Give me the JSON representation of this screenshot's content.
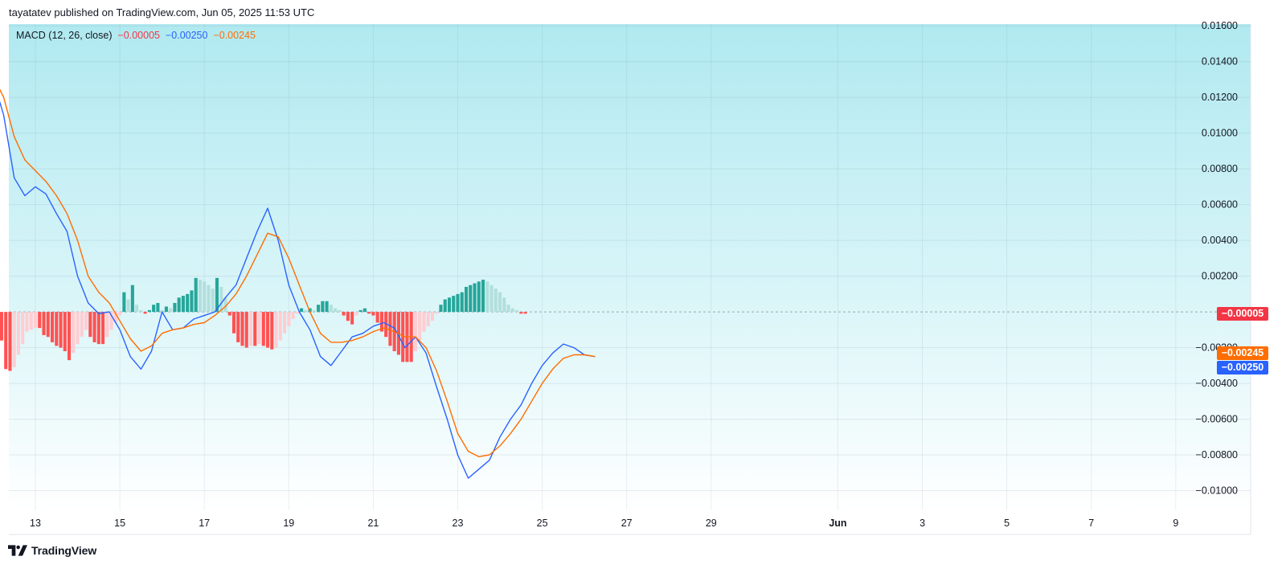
{
  "header": {
    "published": "tayatatev published on TradingView.com, Jun 05, 2025 11:53 UTC"
  },
  "footer": {
    "logo_icon": "tradingview-logo-icon",
    "brand": "TradingView"
  },
  "legend": {
    "name": "MACD (12, 26, close)",
    "histogram_value": "−0.00005",
    "macd_value": "−0.00250",
    "signal_value": "−0.00245"
  },
  "axis_tags": {
    "histogram": "−0.00005",
    "signal": "−0.00245",
    "macd": "−0.00250"
  },
  "colors": {
    "background_top": "#b0e9f0",
    "background_bottom": "#ffffff",
    "macd_line": "#2962ff",
    "signal_line": "#ff6d00",
    "hist_pos_growing": "#26a69a",
    "hist_pos_falling": "#b2dfdb",
    "hist_neg_falling": "#ff5252",
    "hist_neg_rising": "#ffcdd2",
    "zero_line": "#9aa7b8"
  },
  "chart_data": {
    "type": "line",
    "title": "MACD (12, 26, close)",
    "x_start": "2025-05-12",
    "x_step_days": 0.25,
    "ylim": [
      -0.0111,
      0.0161
    ],
    "y_ticks": [
      {
        "value": 0.016,
        "label": "0.01600"
      },
      {
        "value": 0.014,
        "label": "0.01400"
      },
      {
        "value": 0.012,
        "label": "0.01200"
      },
      {
        "value": 0.01,
        "label": "0.01000"
      },
      {
        "value": 0.008,
        "label": "0.00800"
      },
      {
        "value": 0.006,
        "label": "0.00600"
      },
      {
        "value": 0.004,
        "label": "0.00400"
      },
      {
        "value": 0.002,
        "label": "0.00200"
      },
      {
        "value": -0.002,
        "label": "−0.00200"
      },
      {
        "value": -0.004,
        "label": "−0.00400"
      },
      {
        "value": -0.006,
        "label": "−0.00600"
      },
      {
        "value": -0.008,
        "label": "−0.00800"
      },
      {
        "value": -0.01,
        "label": "−0.01000"
      }
    ],
    "x_ticks": [
      {
        "date": "2025-05-13",
        "label": "13",
        "bold": false
      },
      {
        "date": "2025-05-15",
        "label": "15",
        "bold": false
      },
      {
        "date": "2025-05-17",
        "label": "17",
        "bold": false
      },
      {
        "date": "2025-05-19",
        "label": "19",
        "bold": false
      },
      {
        "date": "2025-05-21",
        "label": "21",
        "bold": false
      },
      {
        "date": "2025-05-23",
        "label": "23",
        "bold": false
      },
      {
        "date": "2025-05-25",
        "label": "25",
        "bold": false
      },
      {
        "date": "2025-05-27",
        "label": "27",
        "bold": false
      },
      {
        "date": "2025-05-29",
        "label": "29",
        "bold": false
      },
      {
        "date": "2025-06-01",
        "label": "Jun",
        "bold": true
      },
      {
        "date": "2025-06-03",
        "label": "3",
        "bold": false
      },
      {
        "date": "2025-06-05",
        "label": "5",
        "bold": false
      },
      {
        "date": "2025-06-07",
        "label": "7",
        "bold": false
      },
      {
        "date": "2025-06-09",
        "label": "9",
        "bold": false
      }
    ],
    "grid": true,
    "series": [
      {
        "name": "MACD",
        "color": "#2962ff",
        "values": [
          0.013,
          0.011,
          0.0075,
          0.0065,
          0.007,
          0.0066,
          0.0055,
          0.0045,
          0.002,
          0.0005,
          -0.0001,
          0.0,
          -0.001,
          -0.0025,
          -0.0032,
          -0.0022,
          0.0,
          -0.001,
          -0.0009,
          -0.0004,
          -0.0002,
          0.0,
          0.0008,
          0.0015,
          0.003,
          0.0045,
          0.0058,
          0.004,
          0.0015,
          0.0,
          -0.001,
          -0.0025,
          -0.003,
          -0.0022,
          -0.0014,
          -0.0012,
          -0.0008,
          -0.0006,
          -0.0009,
          -0.002,
          -0.0014,
          -0.0023,
          -0.0042,
          -0.006,
          -0.008,
          -0.0093,
          -0.0088,
          -0.0083,
          -0.007,
          -0.006,
          -0.0052,
          -0.004,
          -0.003,
          -0.0023,
          -0.0018,
          -0.002,
          -0.0024,
          -0.0025
        ]
      },
      {
        "name": "Signal",
        "color": "#ff6d00",
        "values": [
          0.0132,
          0.012,
          0.0098,
          0.0085,
          0.0079,
          0.0073,
          0.0065,
          0.0055,
          0.004,
          0.002,
          0.0011,
          0.0005,
          -0.0005,
          -0.0015,
          -0.0022,
          -0.0019,
          -0.0012,
          -0.001,
          -0.0009,
          -0.0007,
          -0.0006,
          -0.0002,
          0.0003,
          0.001,
          0.002,
          0.0032,
          0.0044,
          0.0042,
          0.003,
          0.0015,
          0.0,
          -0.0012,
          -0.0017,
          -0.0017,
          -0.0016,
          -0.0014,
          -0.0011,
          -0.0009,
          -0.0011,
          -0.0014,
          -0.0014,
          -0.002,
          -0.0033,
          -0.005,
          -0.0068,
          -0.0078,
          -0.0081,
          -0.008,
          -0.0075,
          -0.0068,
          -0.006,
          -0.005,
          -0.004,
          -0.0032,
          -0.0026,
          -0.0024,
          -0.0024,
          -0.0025
        ]
      },
      {
        "name": "Histogram",
        "type": "bar",
        "values": [
          -0.0009,
          -0.0012,
          -0.0016,
          -0.0032,
          -0.0033,
          -0.0031,
          -0.0024,
          -0.0018,
          -0.0011,
          -0.001,
          -0.0009,
          -0.0009,
          -0.0013,
          -0.0014,
          -0.0017,
          -0.0019,
          -0.002,
          -0.0022,
          -0.0027,
          -0.0023,
          -0.0018,
          -0.0014,
          -0.001,
          -0.0014,
          -0.0017,
          -0.0018,
          -0.0018,
          -0.0014,
          -0.001,
          -0.0006,
          -0.0002,
          0.0011,
          0.0007,
          0.0015,
          0.0004,
          0.0001,
          -0.0001,
          0.0001,
          0.0004,
          0.0005,
          0.0001,
          0.0003,
          0.0002,
          0.0005,
          0.0008,
          0.0009,
          0.001,
          0.0012,
          0.0019,
          0.0018,
          0.0017,
          0.0015,
          0.0013,
          0.0019,
          0.0014,
          0.0008,
          -0.0002,
          -0.0012,
          -0.0017,
          -0.0019,
          -0.002,
          -0.0019,
          -0.0019,
          -0.0018,
          -0.0019,
          -0.002,
          -0.0021,
          -0.002,
          -0.0016,
          -0.0012,
          -0.0008,
          -0.0004,
          -0.0001,
          0.0002,
          0.0001,
          0.0002,
          0.0001,
          0.0004,
          0.0006,
          0.0006,
          0.0004,
          0.0002,
          0.0001,
          -0.0002,
          -0.0005,
          -0.0007,
          -0.0002,
          0.0001,
          0.0002,
          -0.0001,
          -0.0002,
          -0.0006,
          -0.0011,
          -0.0014,
          -0.0019,
          -0.0022,
          -0.0024,
          -0.0028,
          -0.0028,
          -0.0028,
          -0.0022,
          -0.0016,
          -0.0011,
          -0.0008,
          -0.0005,
          -0.0001,
          0.0004,
          0.0007,
          0.0008,
          0.0009,
          0.001,
          0.0011,
          0.0014,
          0.0015,
          0.0016,
          0.0017,
          0.0018,
          0.0017,
          0.0015,
          0.0013,
          0.0011,
          0.0008,
          0.0004,
          0.0002,
          0.0001,
          -0.0001,
          -0.0001
        ],
        "x_step_days": 0.1
      }
    ]
  }
}
